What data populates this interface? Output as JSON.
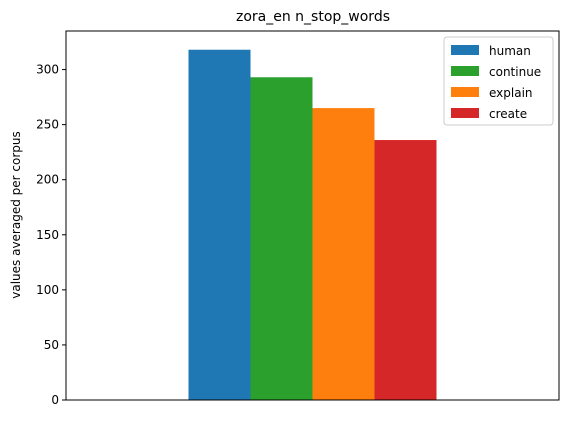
{
  "chart_data": {
    "type": "bar",
    "title": "zora_en n_stop_words",
    "xlabel": "",
    "ylabel": "values averaged per corpus",
    "ylim": [
      0,
      335
    ],
    "yticks": [
      0,
      50,
      100,
      150,
      200,
      250,
      300
    ],
    "categories": [
      ""
    ],
    "legend_position": "top-right",
    "grid": false,
    "series": [
      {
        "name": "human",
        "values": [
          318
        ],
        "color": "#1f77b4"
      },
      {
        "name": "continue",
        "values": [
          293
        ],
        "color": "#2ca02c"
      },
      {
        "name": "explain",
        "values": [
          265
        ],
        "color": "#ff7f0e"
      },
      {
        "name": "create",
        "values": [
          236
        ],
        "color": "#d62728"
      }
    ]
  }
}
